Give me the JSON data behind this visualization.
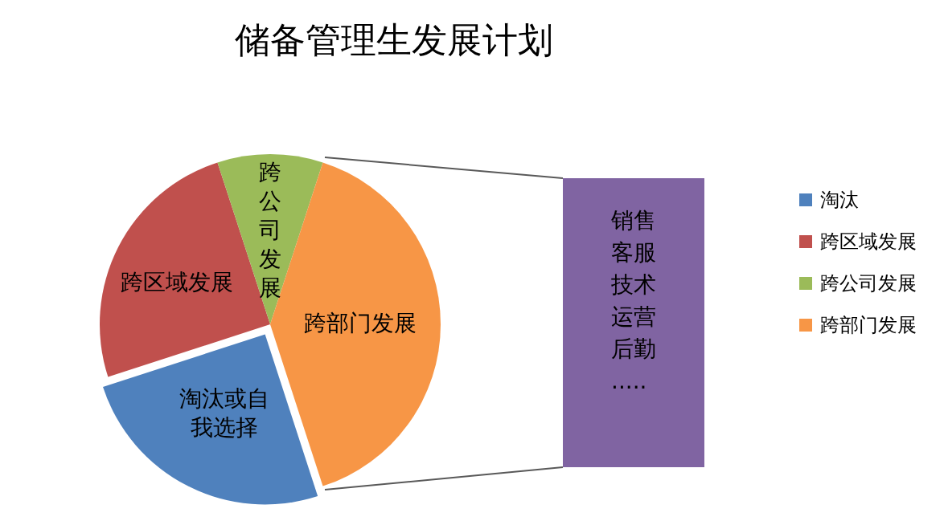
{
  "chart_data": {
    "type": "pie",
    "title": "储备管理生发展计划",
    "categories": [
      "淘汰",
      "跨区域发展",
      "跨公司发展",
      "跨部门发展"
    ],
    "values": [
      25,
      25,
      10,
      40
    ],
    "colors": [
      "#4f81bd",
      "#c0504d",
      "#9bbb59",
      "#f79646"
    ],
    "value_labels": [
      "淘汰或自我选择",
      "跨区域发展",
      "跨公司发展",
      "跨部门发展"
    ],
    "annotations": [
      "销售",
      "客服",
      "技术",
      "运营",
      "后勤",
      "....."
    ],
    "legend": "right"
  }
}
